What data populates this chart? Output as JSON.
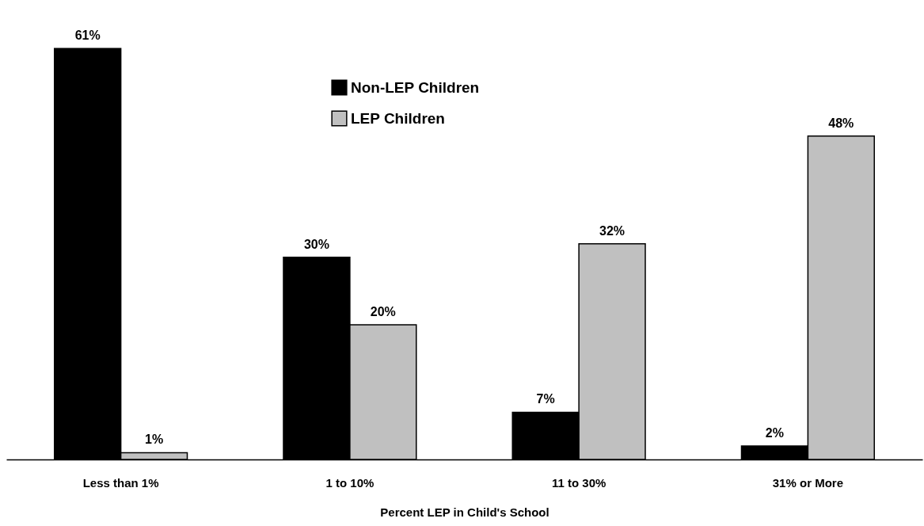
{
  "chart_data": {
    "type": "bar",
    "xlabel": "Percent LEP in Child's School",
    "categories": [
      "Less than 1%",
      "1 to 10%",
      "11 to 30%",
      "31% or More"
    ],
    "series": [
      {
        "name": "Non-LEP Children",
        "color": "#000000",
        "values": [
          61,
          30,
          7,
          2
        ],
        "value_labels": [
          "61%",
          "30%",
          "7%",
          "2%"
        ]
      },
      {
        "name": "LEP Children",
        "color": "#c0c0c0",
        "values": [
          1,
          20,
          32,
          48
        ],
        "value_labels": [
          "1%",
          "20%",
          "32%",
          "48%"
        ]
      }
    ],
    "legend": "top",
    "grid": false
  }
}
